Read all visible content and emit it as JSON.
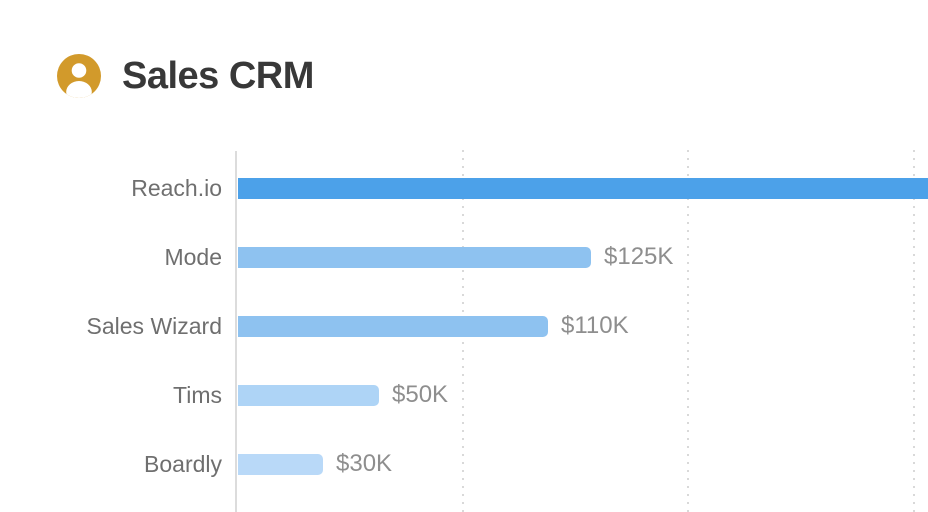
{
  "page": {
    "background": "#FFFFFF"
  },
  "header": {
    "title": "Sales CRM",
    "icon": {
      "name": "user-avatar-icon",
      "color": "#D29A2B",
      "glyph_color": "#FFFFFF"
    }
  },
  "chart_data": {
    "type": "bar",
    "orientation": "horizontal",
    "title": "Sales CRM",
    "categories": [
      "Reach.io",
      "Mode",
      "Sales Wizard",
      "Tims",
      "Boardly"
    ],
    "values": [
      null,
      125,
      110,
      50,
      30
    ],
    "value_unit": "K USD",
    "value_labels": [
      "",
      "$125K",
      "$110K",
      "$50K",
      "$30K"
    ],
    "bar_colors": [
      "#4CA1E9",
      "#8EC2F0",
      "#8EC2F0",
      "#AED4F6",
      "#B9D9F8"
    ],
    "clipped_bars": [
      true,
      false,
      false,
      false,
      false
    ],
    "gridline_values": [
      80,
      160,
      240
    ],
    "xlim": [
      0,
      245
    ],
    "grid": "vertical-dotted",
    "legend": "none",
    "xlabel": "",
    "ylabel": "",
    "colors": {
      "category_label": "#6F6F6F",
      "value_label": "#8E8E8E",
      "axis_line": "#DCDCDC",
      "gridline": "#D9D9D9"
    }
  }
}
